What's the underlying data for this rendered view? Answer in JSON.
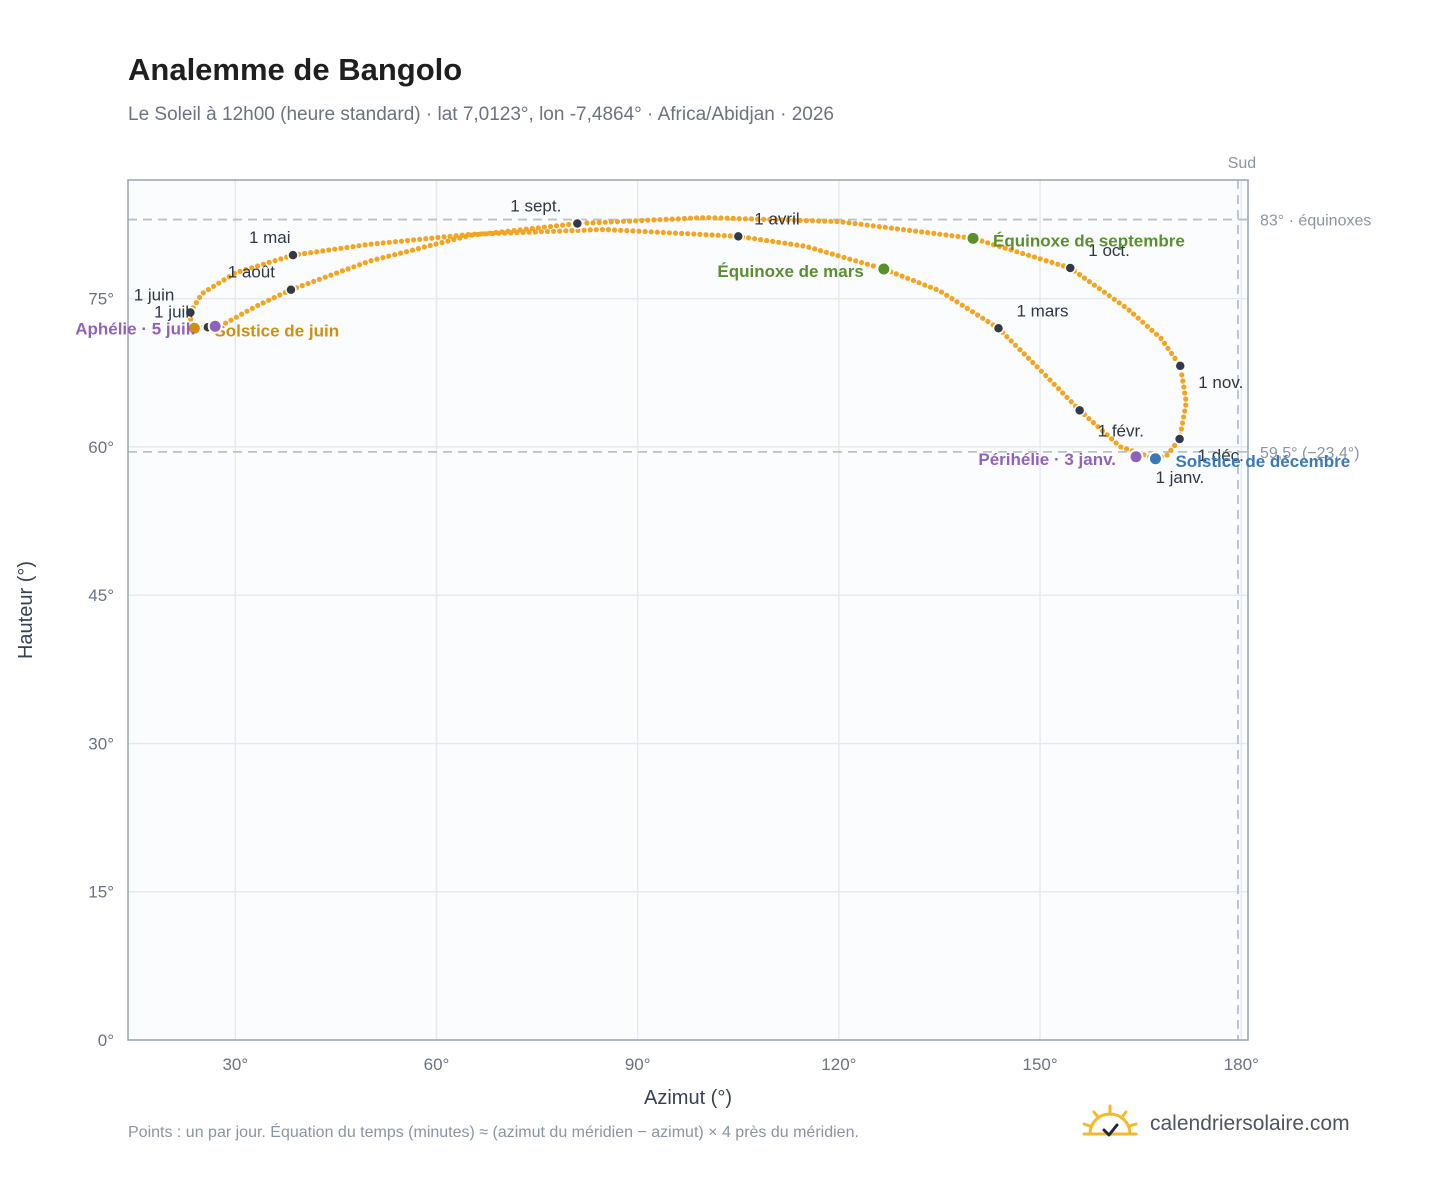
{
  "header": {
    "title": "Analemme de Bangolo",
    "subtitle": "Le Soleil à 12h00 (heure standard) · lat 7,0123°, lon -7,4864° · Africa/Abidjan · 2026"
  },
  "footer": {
    "note": "Points : un par jour. Équation du temps (minutes) ≈ (azimut du méridien − azimut) × 4 près du méridien.",
    "brand": "calendriersolaire.com",
    "brand_icon": "sun-check-icon"
  },
  "chart_data": {
    "type": "scatter",
    "xlabel": "Azimut (°)",
    "ylabel": "Hauteur (°)",
    "xlim": [
      14,
      181
    ],
    "ylim": [
      0,
      87
    ],
    "x_ticks": [
      30,
      60,
      90,
      120,
      150,
      180
    ],
    "x_tick_labels": [
      "30°",
      "60°",
      "90°",
      "120°",
      "150°",
      "180°"
    ],
    "y_ticks": [
      0,
      15,
      30,
      45,
      60,
      75
    ],
    "y_tick_labels": [
      "0°",
      "15°",
      "30°",
      "45°",
      "60°",
      "75°"
    ],
    "grid": true,
    "colors": {
      "analemma": "#f3a521",
      "month": "#343a45",
      "equinox": "#5a8f2e",
      "june_solstice": "#d18f12",
      "december_solstice": "#3a78b8",
      "apsis": "#9063b8",
      "reference": "#b9c1cc",
      "plot_bg": "#fafcfe"
    },
    "reference_lines": {
      "meridian": {
        "x": 179.5,
        "label": "Sud"
      },
      "equinox_altitude": {
        "y": 83.0,
        "label": "83° · équinoxes"
      },
      "winter_altitude": {
        "y": 59.5,
        "label": "59,5° (−23,4°)"
      }
    },
    "month_markers": [
      {
        "label": "1 janv.",
        "x": 167.2,
        "y": 58.8
      },
      {
        "label": "1 févr.",
        "x": 155.9,
        "y": 63.7
      },
      {
        "label": "1 mars",
        "x": 143.8,
        "y": 72.0
      },
      {
        "label": "1 avril",
        "x": 105.0,
        "y": 81.3
      },
      {
        "label": "1 mai",
        "x": 38.6,
        "y": 79.4
      },
      {
        "label": "1 juin",
        "x": 23.3,
        "y": 73.6
      },
      {
        "label": "1 juil.",
        "x": 25.9,
        "y": 72.1
      },
      {
        "label": "1 août",
        "x": 38.3,
        "y": 75.9
      },
      {
        "label": "1 sept.",
        "x": 81.0,
        "y": 82.6
      },
      {
        "label": "1 oct.",
        "x": 154.5,
        "y": 78.1
      },
      {
        "label": "1 nov.",
        "x": 170.9,
        "y": 68.2
      },
      {
        "label": "1 déc.",
        "x": 170.8,
        "y": 60.8
      }
    ],
    "events": [
      {
        "label": "Équinoxe de mars",
        "x": 126.7,
        "y": 78.0,
        "color": "#5a8f2e"
      },
      {
        "label": "Équinoxe de septembre",
        "x": 140.0,
        "y": 81.1,
        "color": "#5a8f2e"
      },
      {
        "label": "Solstice de juin",
        "x": 23.9,
        "y": 72.0,
        "color": "#d18f12"
      },
      {
        "label": "Solstice de décembre",
        "x": 167.2,
        "y": 58.8,
        "color": "#3a78b8"
      },
      {
        "label": "Aphélie · 5 juil.",
        "x": 27.0,
        "y": 72.2,
        "color": "#9063b8"
      },
      {
        "label": "Périhélie · 3 janv.",
        "x": 164.3,
        "y": 59.0,
        "color": "#9063b8"
      }
    ],
    "path_anchors": [
      [
        167.2,
        58.8
      ],
      [
        162.0,
        60.0
      ],
      [
        155.9,
        63.7
      ],
      [
        150.0,
        67.8
      ],
      [
        143.8,
        72.0
      ],
      [
        135.0,
        75.8
      ],
      [
        126.7,
        78.0
      ],
      [
        115.0,
        80.3
      ],
      [
        105.0,
        81.3
      ],
      [
        85.0,
        82.0
      ],
      [
        65.0,
        81.5
      ],
      [
        50.0,
        80.5
      ],
      [
        38.6,
        79.4
      ],
      [
        30.0,
        77.6
      ],
      [
        25.0,
        75.5
      ],
      [
        23.3,
        73.6
      ],
      [
        23.4,
        72.2
      ],
      [
        23.9,
        72.0
      ],
      [
        25.9,
        72.1
      ],
      [
        28.5,
        72.5
      ],
      [
        33.0,
        74.2
      ],
      [
        38.3,
        75.9
      ],
      [
        50.0,
        78.8
      ],
      [
        65.0,
        81.4
      ],
      [
        81.0,
        82.6
      ],
      [
        100.0,
        83.2
      ],
      [
        120.0,
        82.8
      ],
      [
        140.0,
        81.1
      ],
      [
        154.5,
        78.1
      ],
      [
        163.0,
        74.0
      ],
      [
        168.0,
        71.0
      ],
      [
        170.9,
        68.2
      ],
      [
        171.8,
        64.5
      ],
      [
        170.8,
        60.8
      ],
      [
        169.0,
        59.2
      ],
      [
        167.2,
        58.8
      ]
    ]
  }
}
